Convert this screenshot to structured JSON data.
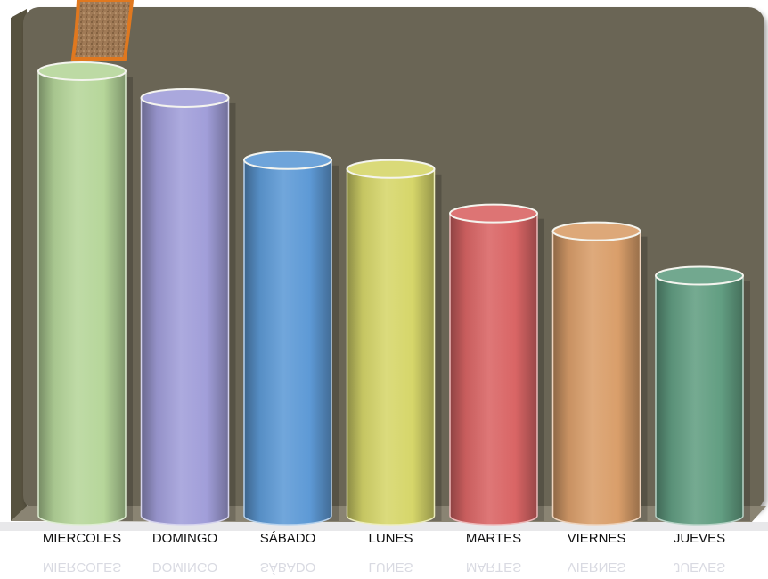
{
  "chart_data": {
    "type": "bar",
    "style": "3d-cylinder",
    "title": "",
    "xlabel": "",
    "ylabel": "",
    "ylim": [
      0,
      100
    ],
    "grid": false,
    "legend": "none",
    "categories": [
      "MIERCOLES",
      "DOMINGO",
      "SÁBADO",
      "LUNES",
      "MARTES",
      "VIERNES",
      "JUEVES"
    ],
    "values": [
      100,
      94,
      80,
      78,
      68,
      64,
      54
    ],
    "colors": [
      "#b6d69a",
      "#a19ed9",
      "#5e9ad6",
      "#d6d66a",
      "#d96565",
      "#d99e6a",
      "#629e82"
    ],
    "background_color": "#6b6555",
    "floor_color": "#8a8473"
  },
  "decoration": {
    "name": "cork-texture-tab",
    "fill": "#a07a56",
    "stroke": "#e0781f"
  }
}
